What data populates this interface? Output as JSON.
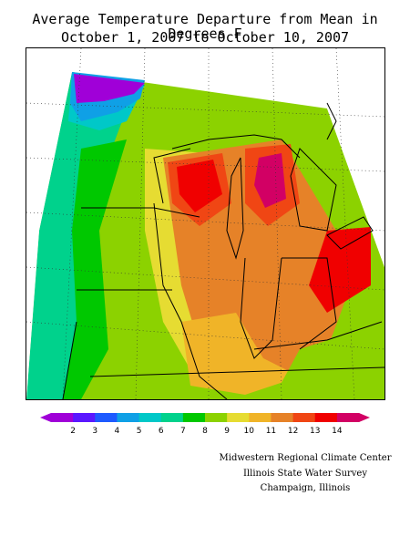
{
  "title": {
    "line1": "Average Temperature Departure from Mean in Degrees F",
    "line2": "October 1, 2007 to October 10, 2007"
  },
  "legend": {
    "labels": [
      "2",
      "3",
      "4",
      "5",
      "6",
      "7",
      "8",
      "9",
      "10",
      "11",
      "12",
      "13",
      "14"
    ],
    "colors": [
      "#a000d8",
      "#5a18ff",
      "#1e5aff",
      "#0fa0e6",
      "#00c8c8",
      "#00d28c",
      "#00c800",
      "#8cd200",
      "#e6dc32",
      "#f0b428",
      "#e68228",
      "#f04614",
      "#f00000",
      "#d20064"
    ]
  },
  "credits": {
    "line1": "Midwestern Regional Climate Center",
    "line2": "Illinois State Water Survey",
    "line3": "Champaign, Illinois"
  }
}
